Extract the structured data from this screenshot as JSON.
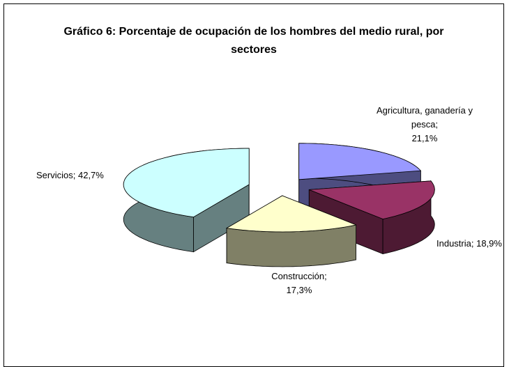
{
  "chart_data": {
    "type": "pie3d",
    "title": "Gráfico 6: Porcentaje de ocupación de los hombres del medio rural, por sectores",
    "categories": [
      "Agricultura, ganadería y pesca;",
      "Industria;",
      "Construcción;",
      "Servicios;"
    ],
    "values": [
      21.1,
      18.9,
      17.3,
      42.7
    ],
    "value_labels": [
      "21,1%",
      "18,9%",
      "17,3%",
      "42,7%"
    ],
    "series": [
      {
        "colors": [
          "#9999ff",
          "#993366",
          "#ffffcc",
          "#ccffff"
        ]
      }
    ],
    "side_colors": [
      "#4d4d80",
      "#4d1a33",
      "#808066",
      "#668080"
    ]
  }
}
